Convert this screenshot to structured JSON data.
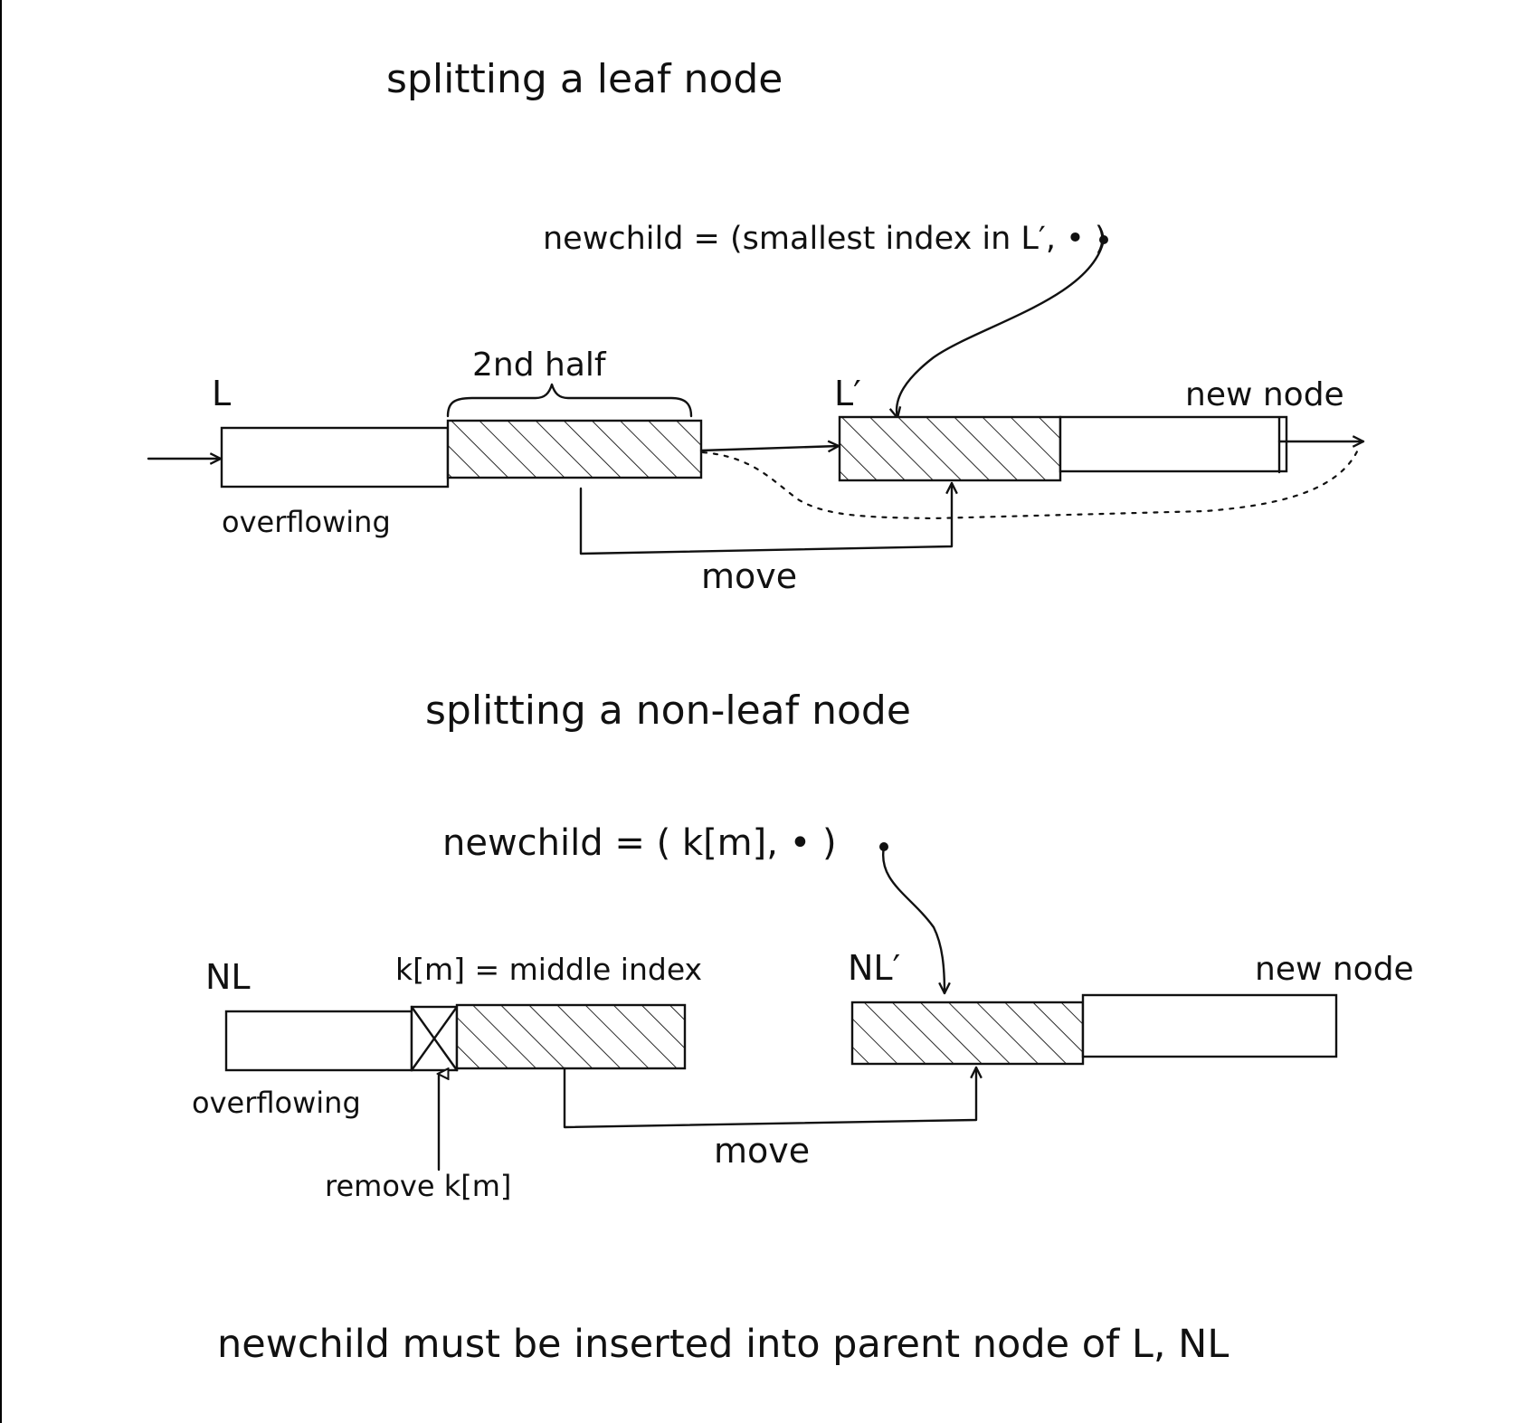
{
  "leaf_section": {
    "title": "splitting a leaf node",
    "newchild_formula": "newchild = (smallest index in L′, • )",
    "node_L_label": "L",
    "node_L_prime_label": "L′",
    "second_half_label": "2nd half",
    "overflowing_label": "overflowing",
    "new_node_label": "new node",
    "move_label": "move"
  },
  "nonleaf_section": {
    "title": "splitting a non-leaf node",
    "newchild_formula": "newchild = ( k[m], • )",
    "node_NL_label": "NL",
    "node_NL_prime_label": "NL′",
    "middle_index_label": "k[m] = middle index",
    "overflowing_label": "overflowing",
    "new_node_label": "new node",
    "move_label": "move",
    "remove_label": "remove k[m]"
  },
  "footer": {
    "note": "newchild must be inserted into parent node of L, NL"
  }
}
